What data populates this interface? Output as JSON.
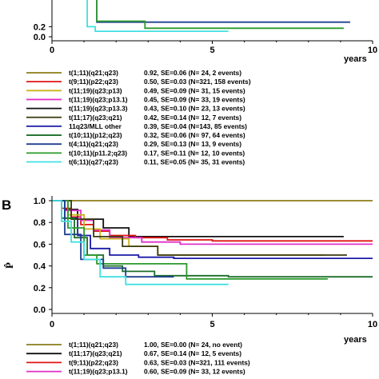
{
  "chart_data": [
    {
      "panel": "",
      "type": "line",
      "step": true,
      "xlabel": "years",
      "ylabel": "",
      "xlim": [
        0,
        10
      ],
      "ylim": [
        0,
        1.0
      ],
      "x_ticks": [
        "0",
        "5",
        "10"
      ],
      "y_ticks": [
        "0.0",
        "0.2"
      ],
      "series": [
        {
          "name": "t(1;11)(q21;q23)",
          "stats": "0.92, SE=0.06 (N=  24, 2 events)",
          "color": "#8b7d1a",
          "points": []
        },
        {
          "name": "t(9;11)(p22;q23)",
          "stats": "0.50, SE=0.03 (N=321, 158 events)",
          "color": "#e01414",
          "points": []
        },
        {
          "name": "t(11;19)(q23;p13)",
          "stats": "0.49, SE=0.09 (N=  31, 15 events)",
          "color": "#c9b21a",
          "points": []
        },
        {
          "name": "t(11;19)(q23;p13.1)",
          "stats": "0.45, SE=0.09 (N=  33, 19 events)",
          "color": "#e030c8",
          "points": []
        },
        {
          "name": "t(11;19)(q23;p13.3)",
          "stats": "0.43, SE=0.10 (N=  23, 13 events)",
          "color": "#101010",
          "points": []
        },
        {
          "name": "t(11;17)(q23;q21)",
          "stats": "0.42, SE=0.14 (N=  12, 7 events)",
          "color": "#3a3a10",
          "points": []
        },
        {
          "name": "11q23/MLL other",
          "stats": "0.39, SE=0.04 (N=143, 85 events)",
          "color": "#1a1aa8",
          "points": []
        },
        {
          "name": "t(10;11)(p12;q23)",
          "stats": "0.32, SE=0.06 (N=  97, 64 events)",
          "color": "#1c6e2a",
          "points": []
        },
        {
          "name": "t(4;11)(q21;q23)",
          "stats": "0.29, SE=0.13 (N=  13, 9 events)",
          "color": "#1f3f8f",
          "points": [
            [
              0,
              1.0
            ],
            [
              1.4,
              0.29
            ],
            [
              9.3,
              0.29
            ]
          ]
        },
        {
          "name": "t(10;11)(p11.2;q23)",
          "stats": "0.17, SE=0.11 (N=  12, 10 events)",
          "color": "#2a9a2a",
          "points": [
            [
              0,
              1.0
            ],
            [
              1.4,
              0.31
            ],
            [
              2.9,
              0.17
            ],
            [
              9.1,
              0.17
            ]
          ]
        },
        {
          "name": "t(6;11)(q27;q23)",
          "stats": "0.11, SE=0.05 (N=  35, 31 events)",
          "color": "#40e0e0",
          "points": [
            [
              0,
              1.0
            ],
            [
              1.1,
              0.2
            ],
            [
              1.35,
              0.11
            ],
            [
              5.5,
              0.11
            ]
          ]
        }
      ]
    },
    {
      "panel": "B",
      "type": "line",
      "step": true,
      "xlabel": "years",
      "ylabel": "P̂",
      "xlim": [
        0,
        10
      ],
      "ylim": [
        0,
        1.0
      ],
      "x_ticks": [
        "0",
        "5",
        "10"
      ],
      "y_ticks": [
        "0.0",
        "0.2",
        "0.4",
        "0.6",
        "0.8",
        "1.0"
      ],
      "series": [
        {
          "name": "t(1;11)(q21;q23)",
          "stats": "1.00, SE=0.00 (N=  24, no event)",
          "color": "#8b7d1a",
          "points": [
            [
              0,
              1.0
            ],
            [
              10,
              1.0
            ]
          ]
        },
        {
          "name": "t(11;17)(q23;q21)",
          "stats": "0.67, SE=0.14 (N=  12, 5 events)",
          "color": "#101010",
          "points": [
            [
              0,
              1.0
            ],
            [
              0.4,
              0.92
            ],
            [
              0.8,
              0.83
            ],
            [
              1.6,
              0.75
            ],
            [
              2.4,
              0.67
            ],
            [
              3.6,
              0.67
            ],
            [
              4.7,
              0.67
            ],
            [
              9.1,
              0.67
            ]
          ]
        },
        {
          "name": "t(9;11)(p22;q23)",
          "stats": "0.63, SE=0.03 (N=321, 111 events)",
          "color": "#e01414",
          "points": [
            [
              0,
              1.0
            ],
            [
              0.3,
              0.93
            ],
            [
              0.6,
              0.85
            ],
            [
              0.9,
              0.78
            ],
            [
              1.3,
              0.72
            ],
            [
              1.8,
              0.68
            ],
            [
              2.6,
              0.66
            ],
            [
              3.6,
              0.64
            ],
            [
              5.0,
              0.63
            ],
            [
              10,
              0.63
            ]
          ]
        },
        {
          "name": "t(11;19)(q23;p13.1)",
          "stats": "0.60, SE=0.09 (N=  33, 12 events)",
          "color": "#e030c8",
          "points": [
            [
              0,
              1.0
            ],
            [
              0.4,
              0.91
            ],
            [
              0.9,
              0.82
            ],
            [
              1.3,
              0.73
            ],
            [
              1.8,
              0.66
            ],
            [
              2.8,
              0.62
            ],
            [
              4.0,
              0.6
            ],
            [
              10,
              0.6
            ]
          ]
        },
        {
          "name": "",
          "stats": "",
          "color": "#c9b21a",
          "points": [
            [
              0,
              1.0
            ],
            [
              0.5,
              0.87
            ],
            [
              1.0,
              0.74
            ],
            [
              1.5,
              0.65
            ],
            [
              2.4,
              0.58
            ],
            [
              3.3,
              0.5
            ],
            [
              8.5,
              0.5
            ]
          ]
        },
        {
          "name": "",
          "stats": "",
          "color": "#1a1aa8",
          "points": [
            [
              0,
              1.0
            ],
            [
              0.4,
              0.84
            ],
            [
              0.8,
              0.68
            ],
            [
              1.2,
              0.56
            ],
            [
              1.8,
              0.5
            ],
            [
              2.7,
              0.48
            ],
            [
              3.8,
              0.47
            ],
            [
              10,
              0.47
            ]
          ]
        },
        {
          "name": "",
          "stats": "",
          "color": "#3a3a10",
          "points": [
            [
              0,
              1.0
            ],
            [
              0.6,
              0.83
            ],
            [
              1.3,
              0.67
            ],
            [
              2.2,
              0.58
            ],
            [
              3.3,
              0.5
            ],
            [
              9.2,
              0.5
            ]
          ]
        },
        {
          "name": "",
          "stats": "",
          "color": "#1c6e2a",
          "points": [
            [
              0,
              1.0
            ],
            [
              0.3,
              0.84
            ],
            [
              0.7,
              0.66
            ],
            [
              1.1,
              0.5
            ],
            [
              1.6,
              0.4
            ],
            [
              2.2,
              0.35
            ],
            [
              3.2,
              0.31
            ],
            [
              5.5,
              0.3
            ],
            [
              10,
              0.3
            ]
          ]
        },
        {
          "name": "",
          "stats": "",
          "color": "#2a9a2a",
          "points": [
            [
              0,
              1.0
            ],
            [
              0.5,
              0.75
            ],
            [
              1.0,
              0.5
            ],
            [
              1.4,
              0.42
            ],
            [
              2.8,
              0.42
            ],
            [
              4.2,
              0.28
            ],
            [
              8.6,
              0.28
            ]
          ]
        },
        {
          "name": "",
          "stats": "",
          "color": "#1f3f8f",
          "points": [
            [
              0,
              1.0
            ],
            [
              0.4,
              0.69
            ],
            [
              0.9,
              0.46
            ],
            [
              1.6,
              0.38
            ],
            [
              2.3,
              0.3
            ],
            [
              3.8,
              0.3
            ]
          ]
        },
        {
          "name": "",
          "stats": "",
          "color": "#40e0e0",
          "points": [
            [
              0,
              1.0
            ],
            [
              0.3,
              0.81
            ],
            [
              0.6,
              0.62
            ],
            [
              1.0,
              0.46
            ],
            [
              1.5,
              0.3
            ],
            [
              2.3,
              0.23
            ],
            [
              5.5,
              0.23
            ]
          ]
        }
      ]
    }
  ]
}
